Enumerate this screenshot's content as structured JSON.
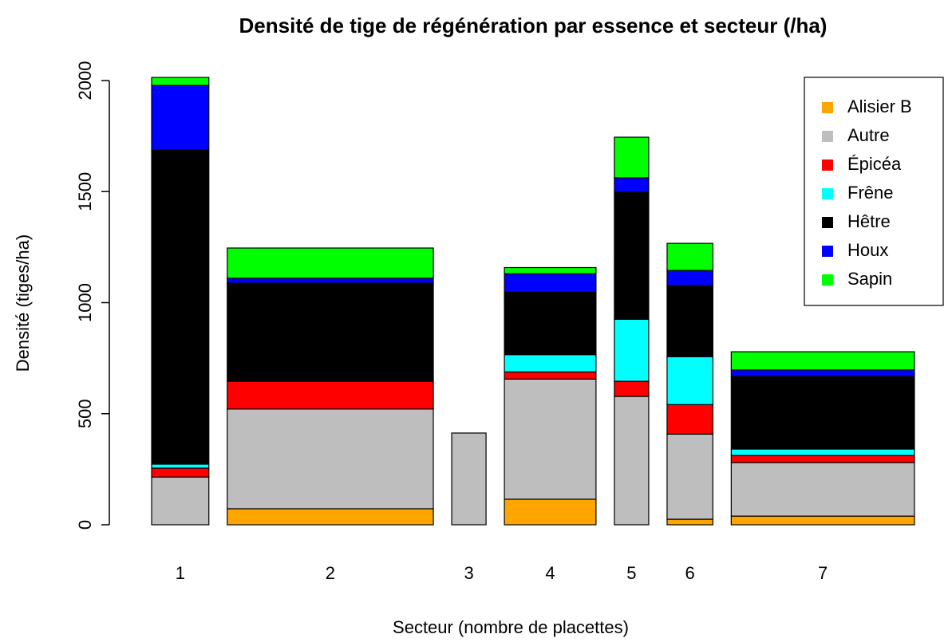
{
  "chart_data": {
    "type": "bar",
    "stacked": true,
    "title": "Densité de tige de régénération par essence et secteur (/ha)",
    "x_label": "Secteur (nombre de placettes)",
    "y_label": "Densité (tiges/ha)",
    "categories": [
      "1",
      "2",
      "3",
      "4",
      "5",
      "6",
      "7"
    ],
    "widths": [
      5,
      18,
      3,
      8,
      3,
      4,
      16
    ],
    "series": [
      {
        "name": "Alisier B",
        "color": "#ffa500",
        "values": [
          0,
          72,
          0,
          115,
          0,
          25,
          39
        ]
      },
      {
        "name": "Autre",
        "color": "#bebebe",
        "values": [
          215,
          449,
          413,
          541,
          578,
          383,
          241
        ]
      },
      {
        "name": "Épicéa",
        "color": "#ff0000",
        "values": [
          40,
          125,
          0,
          32,
          68,
          133,
          32
        ]
      },
      {
        "name": "Frêne",
        "color": "#00ffff",
        "values": [
          18,
          0,
          0,
          78,
          279,
          216,
          29
        ]
      },
      {
        "name": "Hêtre",
        "color": "#000000",
        "values": [
          1415,
          442,
          0,
          281,
          572,
          320,
          327
        ]
      },
      {
        "name": "Houx",
        "color": "#0000ff",
        "values": [
          290,
          22,
          0,
          83,
          65,
          68,
          29
        ]
      },
      {
        "name": "Sapin",
        "color": "#00ff00",
        "values": [
          36,
          136,
          0,
          28,
          183,
          122,
          82
        ]
      }
    ],
    "ylim": [
      0,
      2000
    ],
    "yticks": [
      0,
      500,
      1000,
      1500,
      2000
    ],
    "legend": "top-right"
  }
}
